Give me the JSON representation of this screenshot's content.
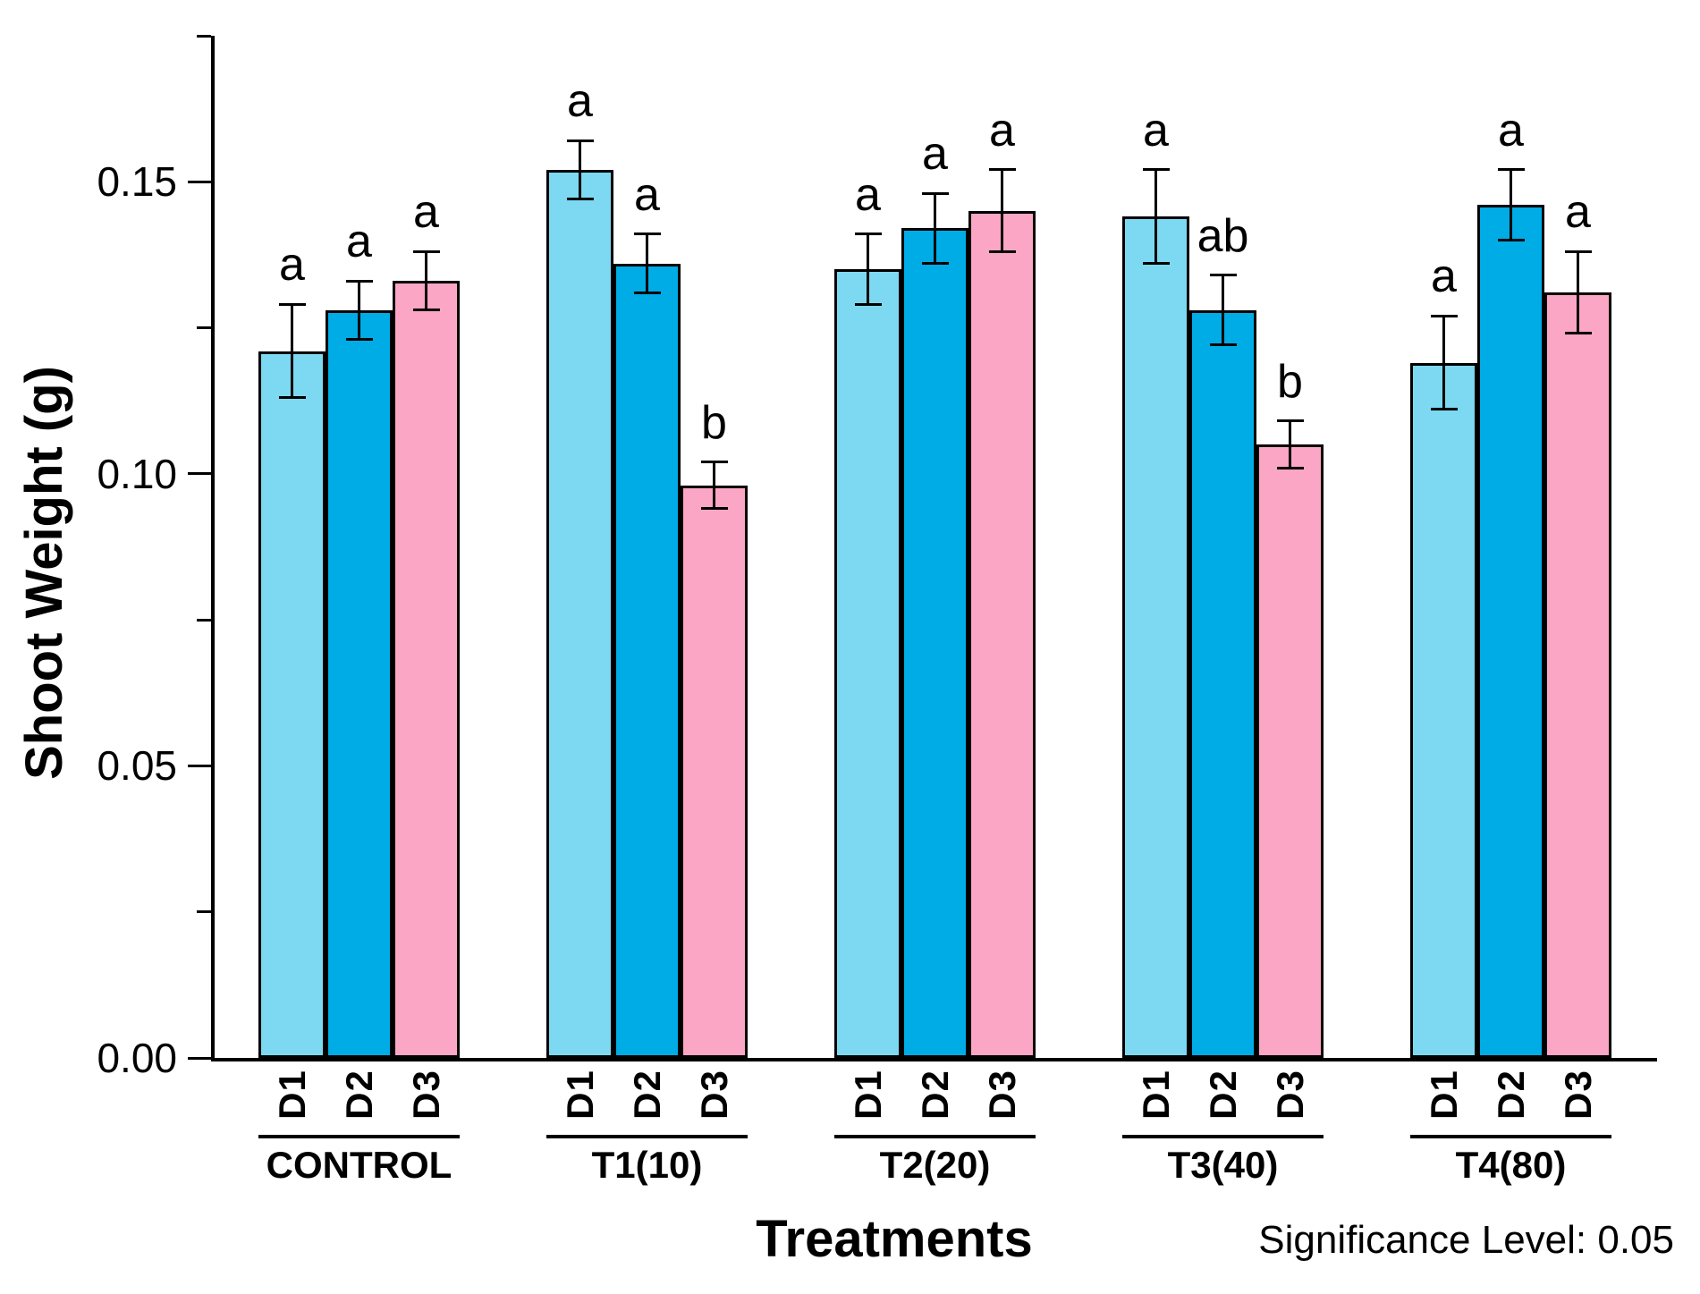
{
  "figure": {
    "y_axis": {
      "label": "Shoot Weight (g)",
      "ticks": [
        {
          "value": 0.0,
          "label": "0.00"
        },
        {
          "value": 0.05,
          "label": "0.05"
        },
        {
          "value": 0.1,
          "label": "0.10"
        },
        {
          "value": 0.15,
          "label": "0.15"
        }
      ],
      "minor_ticks": [
        0.025,
        0.075,
        0.125,
        0.175
      ]
    },
    "x_axis": {
      "label": "Treatments"
    },
    "note": "Significance Level: 0.05"
  },
  "chart_data": {
    "type": "bar",
    "title": "",
    "xlabel": "Treatments",
    "ylabel": "Shoot Weight (g)",
    "ylim": [
      0,
      0.175
    ],
    "yticks": [
      0.0,
      0.05,
      0.1,
      0.15
    ],
    "grid": false,
    "legend_position": "none",
    "significance_note": "Significance Level: 0.05",
    "categories": [
      "CONTROL",
      "T1(10)",
      "T2(20)",
      "T3(40)",
      "T4(80)"
    ],
    "series": [
      {
        "name": "D1",
        "color": "#7CD9F1",
        "values": [
          0.121,
          0.152,
          0.135,
          0.144,
          0.119
        ],
        "errors": [
          0.008,
          0.005,
          0.006,
          0.008,
          0.008
        ],
        "letters": [
          "a",
          "a",
          "a",
          "a",
          "a"
        ]
      },
      {
        "name": "D2",
        "color": "#00ACE6",
        "values": [
          0.128,
          0.136,
          0.142,
          0.128,
          0.146
        ],
        "errors": [
          0.005,
          0.005,
          0.006,
          0.006,
          0.006
        ],
        "letters": [
          "a",
          "a",
          "a",
          "ab",
          "a"
        ]
      },
      {
        "name": "D3",
        "color": "#FCA6C5",
        "values": [
          0.133,
          0.098,
          0.145,
          0.105,
          0.131
        ],
        "errors": [
          0.005,
          0.004,
          0.007,
          0.004,
          0.007
        ],
        "letters": [
          "a",
          "b",
          "a",
          "b",
          "a"
        ]
      }
    ]
  }
}
